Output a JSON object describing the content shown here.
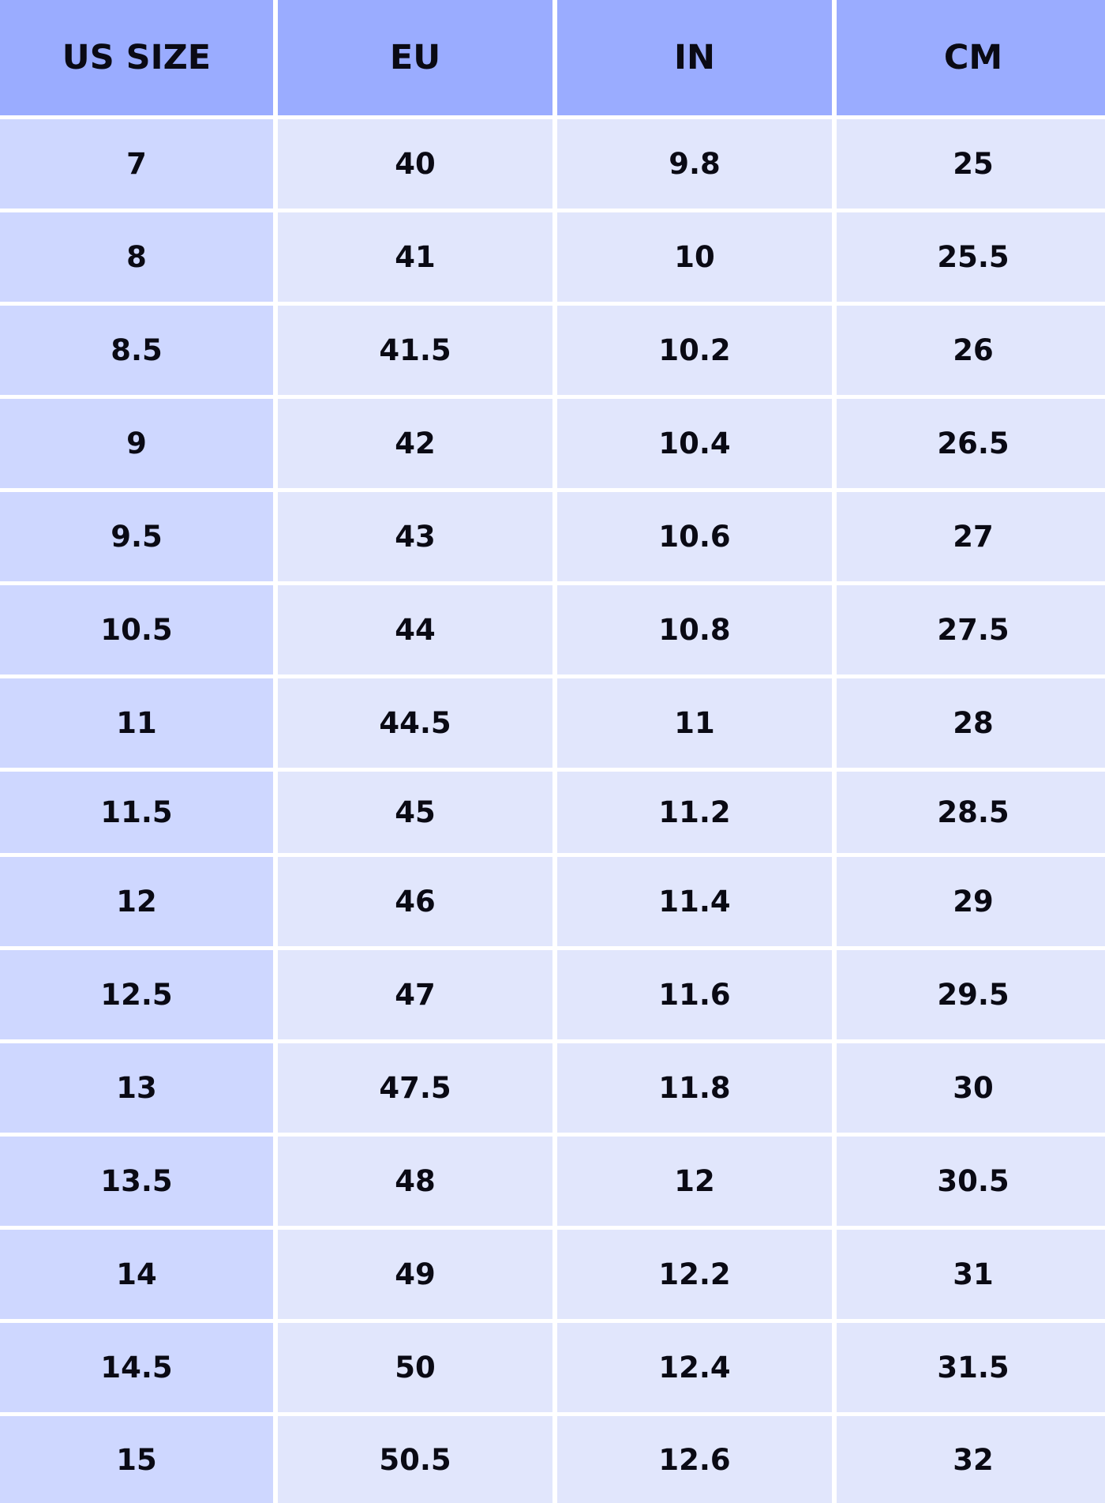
{
  "table": {
    "headers": [
      "US SIZE",
      "EU",
      "IN",
      "CM"
    ],
    "rows": [
      [
        "7",
        "40",
        "9.8",
        "25"
      ],
      [
        "8",
        "41",
        "10",
        "25.5"
      ],
      [
        "8.5",
        "41.5",
        "10.2",
        "26"
      ],
      [
        "9",
        "42",
        "10.4",
        "26.5"
      ],
      [
        "9.5",
        "43",
        "10.6",
        "27"
      ],
      [
        "10.5",
        "44",
        "10.8",
        "27.5"
      ],
      [
        "11",
        "44.5",
        "11",
        "28"
      ],
      [
        "11.5",
        "45",
        "11.2",
        "28.5"
      ],
      [
        "12",
        "46",
        "11.4",
        "29"
      ],
      [
        "12.5",
        "47",
        "11.6",
        "29.5"
      ],
      [
        "13",
        "47.5",
        "11.8",
        "30"
      ],
      [
        "13.5",
        "48",
        "12",
        "30.5"
      ],
      [
        "14",
        "49",
        "12.2",
        "31"
      ],
      [
        "14.5",
        "50",
        "12.4",
        "31.5"
      ],
      [
        "15",
        "50.5",
        "12.6",
        "32"
      ]
    ]
  },
  "colors": {
    "header": "#9aacff",
    "first_column": "#ced7ff",
    "cell": "#e1e6fc"
  }
}
